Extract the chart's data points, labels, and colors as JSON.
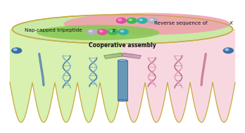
{
  "fig_width": 3.48,
  "fig_height": 1.89,
  "dpi": 100,
  "bg_color": "#ffffff",
  "disk_top_color": "#c8e8a0",
  "disk_top_edge": "#c8a840",
  "pink_color": "#f0a0b0",
  "green_color": "#88c855",
  "label_nap": "Nap-capped tripeptide ",
  "label_nap_italic": "X",
  "label_rev": "Reverse sequence of ",
  "label_rev_italic": "X",
  "label_coop": "Cooperative assembly",
  "sphere_colors_pink_row": [
    "#e0509a",
    "#40b850",
    "#30b0a8",
    "#b0b0c0"
  ],
  "sphere_colors_green_row": [
    "#b0b0c0",
    "#e0509a",
    "#40b850",
    "#30b0a8"
  ],
  "left_bg": "#d8f0b0",
  "right_bg": "#f8d8e0",
  "skirt_edge_color": "#c8a840",
  "sphere_blue_color": "#3870a8",
  "helix_color_blue": "#5080a8",
  "helix_color_pink": "#c07090",
  "tube_color": "#6898b8",
  "fiber_color_blue": "#5080a8",
  "fiber_color_pink": "#c07090"
}
